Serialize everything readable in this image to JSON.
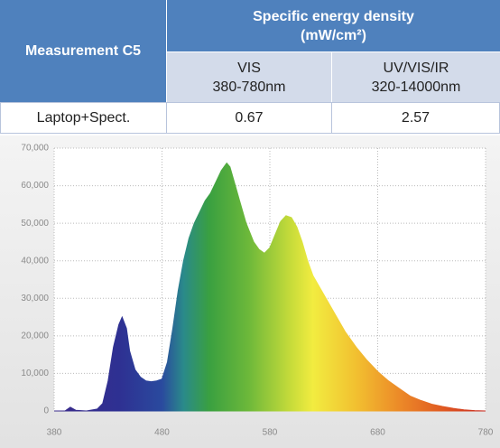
{
  "table": {
    "corner": "Measurement C5",
    "group": [
      "Specific energy density",
      "(mW/cm²)"
    ],
    "columns": [
      [
        "VIS",
        "380-780nm"
      ],
      [
        "UV/VIS/IR",
        "320-14000nm"
      ]
    ],
    "rows": [
      [
        "Laptop+Spect.",
        "0.67",
        "2.57"
      ]
    ]
  },
  "chart_data": {
    "type": "area",
    "x": [
      380,
      390,
      395,
      400,
      410,
      420,
      425,
      430,
      435,
      440,
      443,
      447,
      450,
      455,
      460,
      465,
      470,
      475,
      480,
      485,
      490,
      495,
      500,
      505,
      510,
      515,
      520,
      525,
      530,
      535,
      540,
      543,
      548,
      552,
      558,
      565,
      570,
      575,
      580,
      585,
      590,
      595,
      600,
      605,
      610,
      615,
      620,
      630,
      640,
      650,
      660,
      670,
      680,
      690,
      700,
      710,
      720,
      730,
      740,
      750,
      760,
      770,
      780
    ],
    "values": [
      0,
      0,
      1000,
      200,
      0,
      500,
      2000,
      8000,
      17000,
      23000,
      25000,
      22000,
      16000,
      11000,
      9000,
      8000,
      7800,
      8000,
      8500,
      13000,
      22000,
      32000,
      40000,
      46000,
      50000,
      53000,
      56000,
      58000,
      61000,
      64000,
      66000,
      65000,
      60000,
      56000,
      50000,
      45000,
      43000,
      42000,
      43500,
      47000,
      50500,
      52000,
      51500,
      49000,
      45000,
      40000,
      36000,
      31000,
      26000,
      21000,
      17000,
      13500,
      10500,
      8000,
      6000,
      4000,
      2800,
      1800,
      1200,
      700,
      300,
      100,
      0
    ],
    "xlim": [
      380,
      780
    ],
    "xticks": [
      380,
      480,
      580,
      680,
      780
    ],
    "ylim": [
      0,
      70000
    ],
    "yticks": [
      0,
      {
        "value": 10000,
        "label": "10,000"
      },
      {
        "value": 20000,
        "label": "20,000"
      },
      {
        "value": 30000,
        "label": "30,000"
      },
      {
        "value": 40000,
        "label": "40,000"
      },
      {
        "value": 50000,
        "label": "50,000"
      },
      {
        "value": 60000,
        "label": "60,000"
      },
      {
        "value": 70000,
        "label": "70,000"
      }
    ],
    "grid": true
  }
}
